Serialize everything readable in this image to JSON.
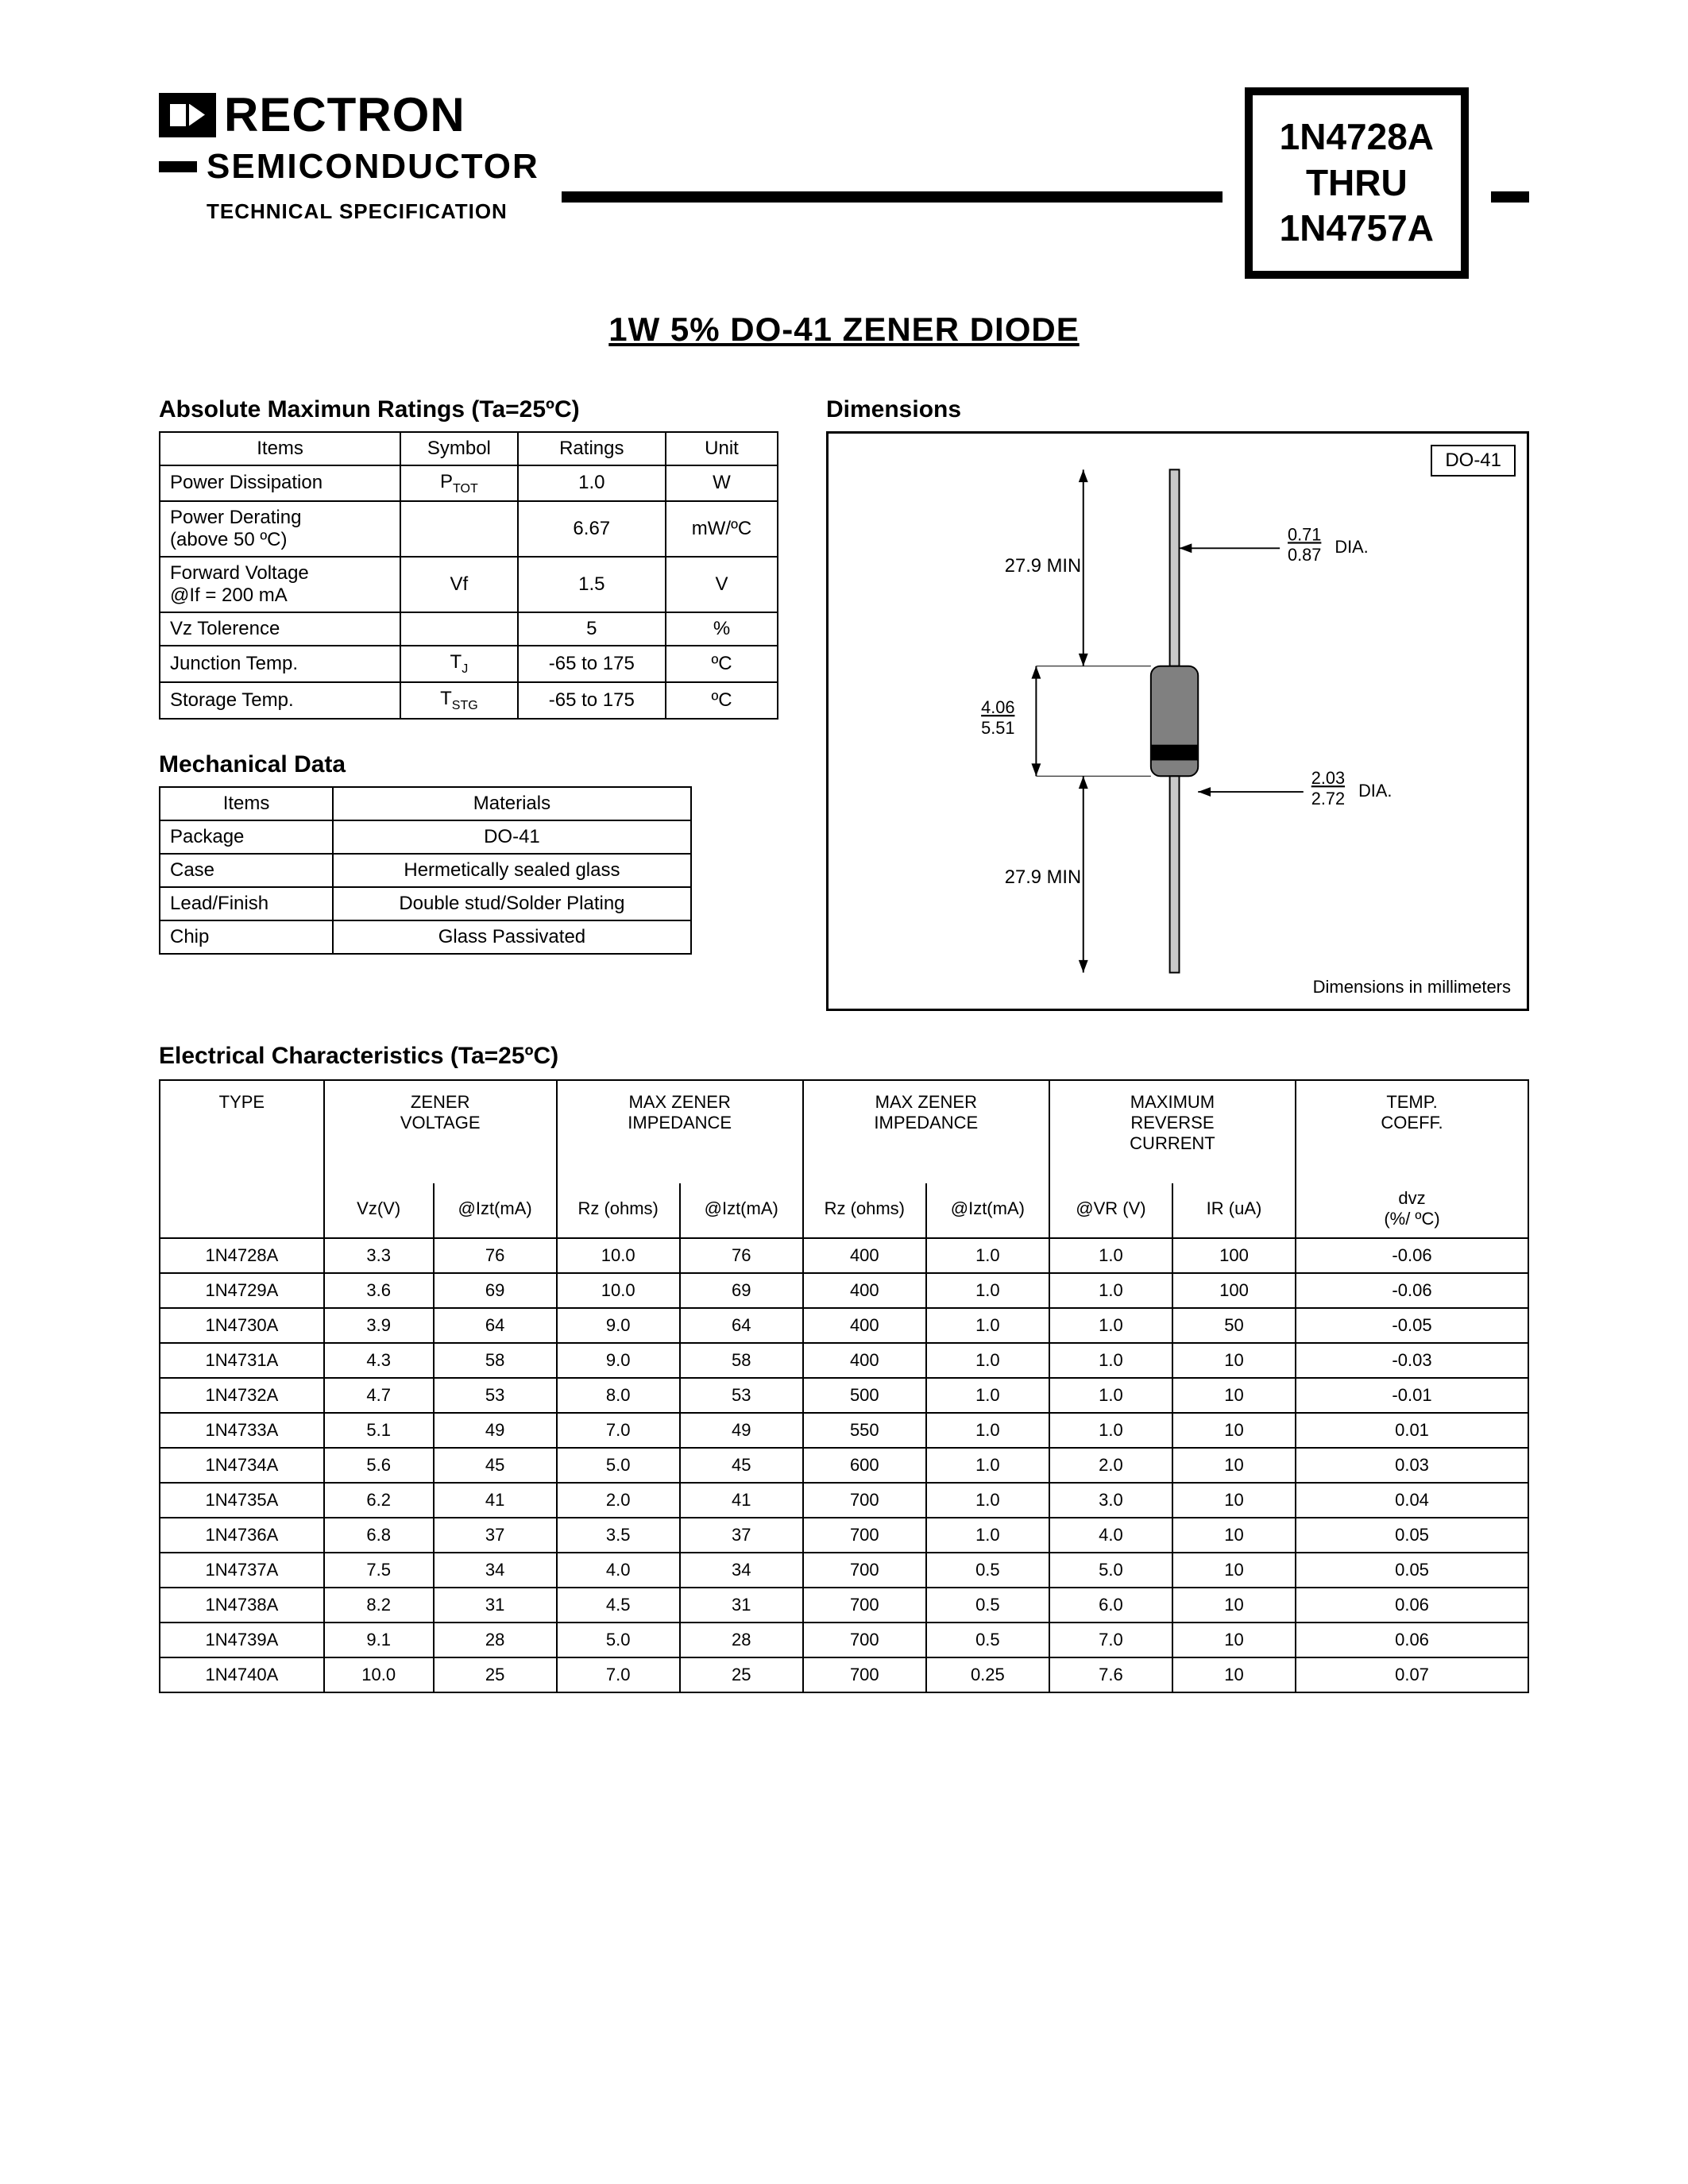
{
  "brand": "RECTRON",
  "subbrand": "SEMICONDUCTOR",
  "techspec": "TECHNICAL SPECIFICATION",
  "partbox": {
    "l1": "1N4728A",
    "l2": "THRU",
    "l3": "1N4757A"
  },
  "title": "1W  5%  DO-41 ZENER DIODE",
  "ratings": {
    "heading": "Absolute Maximun Ratings (Ta=25ºC)",
    "columns": [
      "Items",
      "Symbol",
      "Ratings",
      "Unit"
    ],
    "rows": [
      [
        "Power Dissipation",
        "P_TOT",
        "1.0",
        "W"
      ],
      [
        "Power Derating\n(above 50 ºC)",
        "",
        "6.67",
        "mW/ºC"
      ],
      [
        "Forward Voltage\n@If = 200 mA",
        "Vf",
        "1.5",
        "V"
      ],
      [
        "Vz Tolerence",
        "",
        "5",
        "%"
      ],
      [
        "Junction Temp.",
        "T_J",
        "-65 to 175",
        "ºC"
      ],
      [
        "Storage Temp.",
        "T_STG",
        "-65 to 175",
        "ºC"
      ]
    ]
  },
  "mechanical": {
    "heading": "Mechanical Data",
    "columns": [
      "Items",
      "Materials"
    ],
    "rows": [
      [
        "Package",
        "DO-41"
      ],
      [
        "Case",
        "Hermetically sealed glass"
      ],
      [
        "Lead/Finish",
        "Double stud/Solder Plating"
      ],
      [
        "Chip",
        "Glass Passivated"
      ]
    ]
  },
  "dimensions": {
    "heading": "Dimensions",
    "pkg": "DO-41",
    "note": "Dimensions in millimeters",
    "lead_len": "27.9 MIN",
    "lead_dia_top": "0.71",
    "lead_dia_bot": "0.87",
    "body_top": "4.06",
    "body_bot": "5.51",
    "body_dia_top": "2.03",
    "body_dia_bot": "2.72",
    "dia_label": "DIA."
  },
  "electrical": {
    "heading": "Electrical Characteristics (Ta=25ºC)",
    "group_headers": [
      "TYPE",
      "ZENER\nVOLTAGE",
      "MAX ZENER\nIMPEDANCE",
      "MAX ZENER\nIMPEDANCE",
      "MAXIMUM\nREVERSE\nCURRENT",
      "TEMP.\nCOEFF."
    ],
    "sub_headers": [
      "",
      "Vz(V)",
      "@Izt(mA)",
      "Rz (ohms)",
      "@Izt(mA)",
      "Rz (ohms)",
      "@Izt(mA)",
      "@VR (V)",
      "IR (uA)",
      "dvz\n(%/ ºC)"
    ],
    "rows": [
      [
        "1N4728A",
        "3.3",
        "76",
        "10.0",
        "76",
        "400",
        "1.0",
        "1.0",
        "100",
        "-0.06"
      ],
      [
        "1N4729A",
        "3.6",
        "69",
        "10.0",
        "69",
        "400",
        "1.0",
        "1.0",
        "100",
        "-0.06"
      ],
      [
        "1N4730A",
        "3.9",
        "64",
        "9.0",
        "64",
        "400",
        "1.0",
        "1.0",
        "50",
        "-0.05"
      ],
      [
        "1N4731A",
        "4.3",
        "58",
        "9.0",
        "58",
        "400",
        "1.0",
        "1.0",
        "10",
        "-0.03"
      ],
      [
        "1N4732A",
        "4.7",
        "53",
        "8.0",
        "53",
        "500",
        "1.0",
        "1.0",
        "10",
        "-0.01"
      ],
      [
        "1N4733A",
        "5.1",
        "49",
        "7.0",
        "49",
        "550",
        "1.0",
        "1.0",
        "10",
        "0.01"
      ],
      [
        "1N4734A",
        "5.6",
        "45",
        "5.0",
        "45",
        "600",
        "1.0",
        "2.0",
        "10",
        "0.03"
      ],
      [
        "1N4735A",
        "6.2",
        "41",
        "2.0",
        "41",
        "700",
        "1.0",
        "3.0",
        "10",
        "0.04"
      ],
      [
        "1N4736A",
        "6.8",
        "37",
        "3.5",
        "37",
        "700",
        "1.0",
        "4.0",
        "10",
        "0.05"
      ],
      [
        "1N4737A",
        "7.5",
        "34",
        "4.0",
        "34",
        "700",
        "0.5",
        "5.0",
        "10",
        "0.05"
      ],
      [
        "1N4738A",
        "8.2",
        "31",
        "4.5",
        "31",
        "700",
        "0.5",
        "6.0",
        "10",
        "0.06"
      ],
      [
        "1N4739A",
        "9.1",
        "28",
        "5.0",
        "28",
        "700",
        "0.5",
        "7.0",
        "10",
        "0.06"
      ],
      [
        "1N4740A",
        "10.0",
        "25",
        "7.0",
        "25",
        "700",
        "0.25",
        "7.6",
        "10",
        "0.07"
      ]
    ],
    "col_widths_pct": [
      12,
      8,
      9,
      9,
      9,
      9,
      9,
      9,
      9,
      17
    ]
  },
  "colors": {
    "text": "#000000",
    "bg": "#ffffff",
    "rule": "#000000"
  }
}
